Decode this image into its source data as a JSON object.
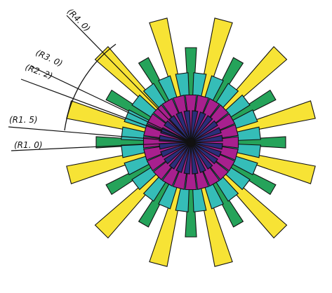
{
  "labels": {
    "r4": "(R4. 0)",
    "r3": "(R3. 0)",
    "r2": "(R2. 2)",
    "r15": "(R1. 5)",
    "r1": "(R1. 0)"
  },
  "colors": {
    "yellow": "#f7e335",
    "green": "#25a35a",
    "cyan": "#35bdb8",
    "magenta": "#a8208e",
    "navy": "#2b2e7a",
    "outline": "#111111"
  },
  "rays": {
    "yellow": {
      "count": 12,
      "radius": 4.0
    },
    "green": {
      "count": 12,
      "radius": 3.0
    },
    "cyan": {
      "count": 24,
      "radius": 2.2
    },
    "magenta": {
      "count": 24,
      "radius": 1.5
    },
    "navy": {
      "count": 24,
      "radius": 1.0
    }
  }
}
